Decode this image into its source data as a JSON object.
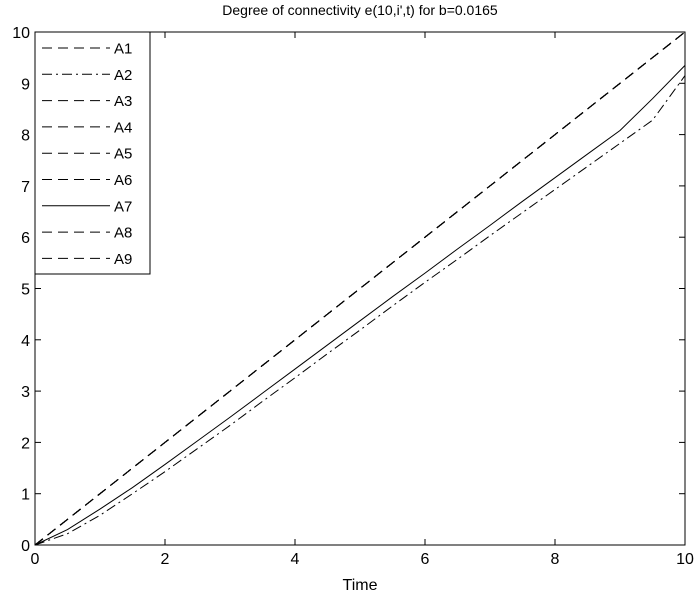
{
  "chart_data": {
    "type": "line",
    "title": "Degree of connectivity e(10,i',t) for b=0.0165",
    "xlabel": "Time",
    "ylabel": "",
    "xlim": [
      0,
      10
    ],
    "ylim": [
      0,
      10
    ],
    "xticks": [
      0,
      2,
      4,
      6,
      8,
      10
    ],
    "yticks": [
      0,
      1,
      2,
      3,
      4,
      5,
      6,
      7,
      8,
      9,
      10
    ],
    "grid": false,
    "legend_position": "top-left",
    "x": [
      0,
      0.5,
      1,
      1.5,
      2,
      2.5,
      3,
      3.5,
      4,
      4.5,
      5,
      5.5,
      6,
      6.5,
      7,
      7.5,
      8,
      8.5,
      9,
      9.5,
      10
    ],
    "series": [
      {
        "name": "A1",
        "style": "dashed",
        "color": "#000000",
        "values": [
          0,
          0.5,
          1,
          1.5,
          2,
          2.5,
          3,
          3.5,
          4,
          4.5,
          5,
          5.5,
          6,
          6.5,
          7,
          7.5,
          8,
          8.5,
          9,
          9.5,
          10
        ]
      },
      {
        "name": "A2",
        "style": "dashdot",
        "color": "#000000",
        "values": [
          0,
          0.22,
          0.58,
          1.0,
          1.43,
          1.88,
          2.33,
          2.8,
          3.26,
          3.73,
          4.19,
          4.66,
          5.12,
          5.57,
          6.03,
          6.48,
          6.93,
          7.38,
          7.83,
          8.28,
          9.15
        ]
      },
      {
        "name": "A3",
        "style": "dashed",
        "color": "#000000",
        "values": [
          0,
          0.5,
          1,
          1.5,
          2,
          2.5,
          3,
          3.5,
          4,
          4.5,
          5,
          5.5,
          6,
          6.5,
          7,
          7.5,
          8,
          8.5,
          9,
          9.5,
          10
        ]
      },
      {
        "name": "A4",
        "style": "dashed",
        "color": "#000000",
        "values": [
          0,
          0.5,
          1,
          1.5,
          2,
          2.5,
          3,
          3.5,
          4,
          4.5,
          5,
          5.5,
          6,
          6.5,
          7,
          7.5,
          8,
          8.5,
          9,
          9.5,
          10
        ]
      },
      {
        "name": "A5",
        "style": "dashed",
        "color": "#000000",
        "values": [
          0,
          0.5,
          1,
          1.5,
          2,
          2.5,
          3,
          3.5,
          4,
          4.5,
          5,
          5.5,
          6,
          6.5,
          7,
          7.5,
          8,
          8.5,
          9,
          9.5,
          10
        ]
      },
      {
        "name": "A6",
        "style": "dashed",
        "color": "#000000",
        "values": [
          0,
          0.5,
          1,
          1.5,
          2,
          2.5,
          3,
          3.5,
          4,
          4.5,
          5,
          5.5,
          6,
          6.5,
          7,
          7.5,
          8,
          8.5,
          9,
          9.5,
          10
        ]
      },
      {
        "name": "A7",
        "style": "solid",
        "color": "#000000",
        "values": [
          0,
          0.3,
          0.7,
          1.12,
          1.57,
          2.03,
          2.49,
          2.96,
          3.43,
          3.9,
          4.37,
          4.84,
          5.3,
          5.77,
          6.23,
          6.7,
          7.16,
          7.62,
          8.08,
          8.7,
          9.35
        ]
      },
      {
        "name": "A8",
        "style": "dashed",
        "color": "#000000",
        "values": [
          0,
          0.5,
          1,
          1.5,
          2,
          2.5,
          3,
          3.5,
          4,
          4.5,
          5,
          5.5,
          6,
          6.5,
          7,
          7.5,
          8,
          8.5,
          9,
          9.5,
          10
        ]
      },
      {
        "name": "A9",
        "style": "dashed",
        "color": "#000000",
        "values": [
          0,
          0.5,
          1,
          1.5,
          2,
          2.5,
          3,
          3.5,
          4,
          4.5,
          5,
          5.5,
          6,
          6.5,
          7,
          7.5,
          8,
          8.5,
          9,
          9.5,
          10
        ]
      }
    ]
  }
}
